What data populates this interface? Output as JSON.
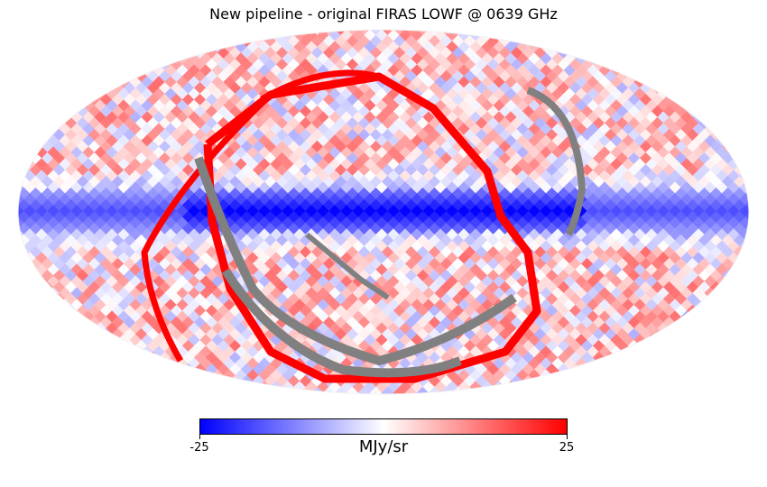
{
  "chart_data": {
    "type": "heatmap",
    "title": "New pipeline - original FIRAS LOWF @ 0639 GHz",
    "projection": "mollweide",
    "colorbar": {
      "unit": "MJy/sr",
      "min": -25,
      "max": 25,
      "min_label": "-25",
      "max_label": "25",
      "colormap": "bwr",
      "low_color": "#0000ff",
      "mid_color": "#ffffff",
      "high_color": "#ff0000"
    },
    "masked_color": "#808080",
    "features": {
      "galactic_plane_value": -25,
      "ecliptic_ring_value": 25,
      "masked_band": "southern diagonal arc"
    }
  }
}
